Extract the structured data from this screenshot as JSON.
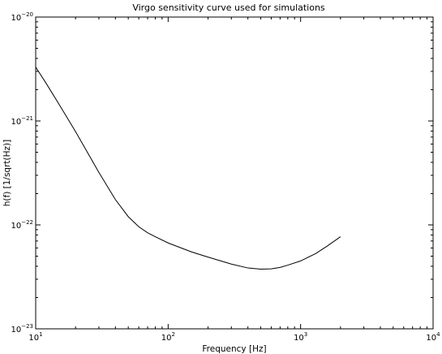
{
  "chart_data": {
    "type": "line",
    "title": "Virgo sensitivity curve used for simulations",
    "xlabel": "Frequency [Hz]",
    "ylabel": "h(f) [1/sqrt(Hz)]",
    "xscale": "log",
    "yscale": "log",
    "xlim": [
      10,
      10000
    ],
    "ylim": [
      1e-23,
      1e-20
    ],
    "grid": false,
    "legend": "none",
    "x_ticks": [
      {
        "value": 10,
        "base": "10",
        "exp": "1"
      },
      {
        "value": 100,
        "base": "10",
        "exp": "2"
      },
      {
        "value": 1000,
        "base": "10",
        "exp": "3"
      },
      {
        "value": 10000,
        "base": "10",
        "exp": "4"
      }
    ],
    "y_ticks": [
      {
        "value": 1e-23,
        "base": "10",
        "exp": "−23"
      },
      {
        "value": 1e-22,
        "base": "10",
        "exp": "−22"
      },
      {
        "value": 1e-21,
        "base": "10",
        "exp": "−21"
      },
      {
        "value": 1e-20,
        "base": "10",
        "exp": "−20"
      }
    ],
    "series": [
      {
        "color": "#000000",
        "x": [
          10,
          12,
          15,
          20,
          25,
          30,
          40,
          50,
          60,
          70,
          80,
          100,
          150,
          200,
          300,
          400,
          500,
          600,
          700,
          800,
          1000,
          1300,
          1600,
          2000
        ],
        "y": [
          3.3e-21,
          2.3e-21,
          1.45e-21,
          7.9e-22,
          4.8e-22,
          3.2e-22,
          1.75e-22,
          1.2e-22,
          9.6e-23,
          8.4e-23,
          7.7e-23,
          6.7e-23,
          5.5e-23,
          4.9e-23,
          4.2e-23,
          3.85e-23,
          3.75e-23,
          3.78e-23,
          3.9e-23,
          4.1e-23,
          4.5e-23,
          5.3e-23,
          6.3e-23,
          7.7e-23
        ]
      }
    ]
  }
}
